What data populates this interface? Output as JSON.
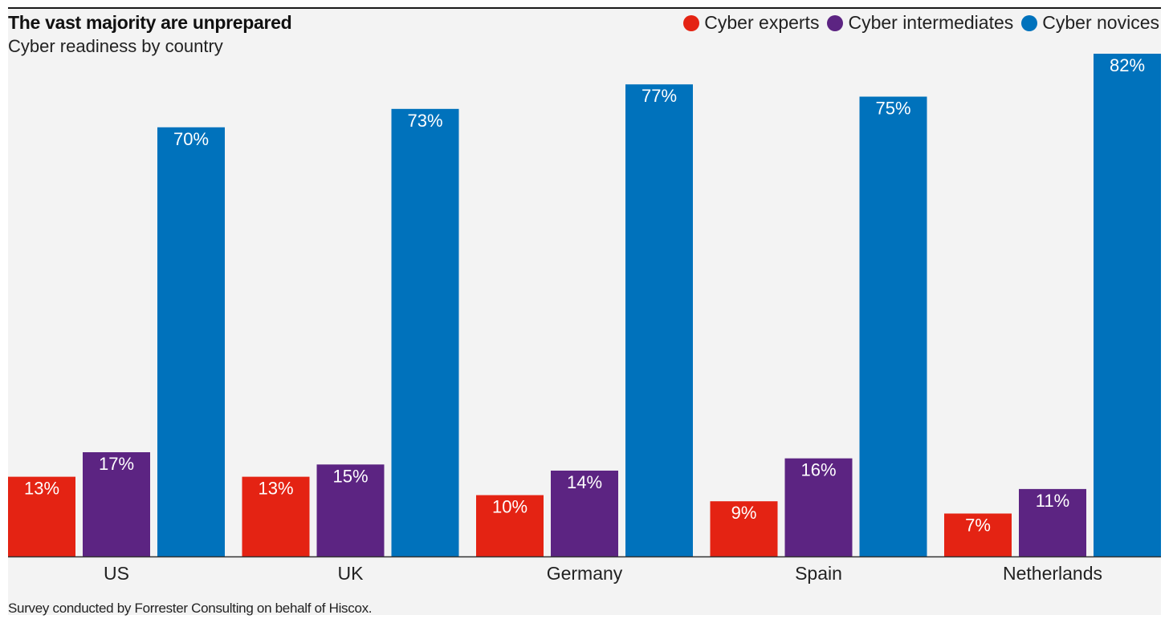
{
  "chart_data": {
    "type": "bar",
    "title": "The vast majority are unprepared",
    "subtitle": "Cyber readiness by country",
    "categories": [
      "US",
      "UK",
      "Germany",
      "Spain",
      "Netherlands"
    ],
    "series": [
      {
        "name": "Cyber experts",
        "color": "#e42313",
        "values": [
          13,
          13,
          10,
          9,
          7
        ],
        "labels": [
          "13%",
          "13%",
          "10%",
          "9%",
          "7%"
        ]
      },
      {
        "name": "Cyber intermediates",
        "color": "#5c2482",
        "values": [
          17,
          15,
          14,
          16,
          11
        ],
        "labels": [
          "17%",
          "15%",
          "14%",
          "16%",
          "11%"
        ]
      },
      {
        "name": "Cyber novices",
        "color": "#0072bc",
        "values": [
          70,
          73,
          77,
          75,
          82
        ],
        "labels": [
          "70%",
          "73%",
          "77%",
          "75%",
          "82%"
        ]
      }
    ],
    "ylim": [
      0,
      82
    ],
    "grid": false,
    "legend_position": "top-right"
  },
  "footnote": "Survey conducted by Forrester Consulting on behalf of Hiscox."
}
